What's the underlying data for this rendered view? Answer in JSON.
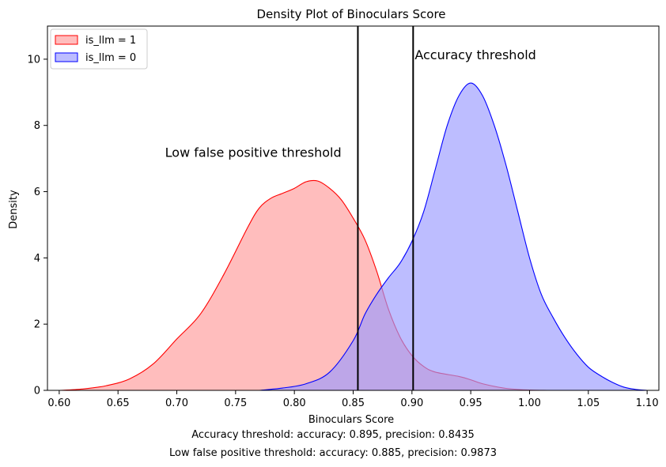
{
  "chart_data": {
    "type": "area",
    "title": "Density Plot of Binoculars Score",
    "xlabel": "Binoculars Score",
    "ylabel": "Density",
    "xlim": [
      0.59,
      1.11
    ],
    "ylim": [
      0,
      11
    ],
    "xticks": [
      0.6,
      0.65,
      0.7,
      0.75,
      0.8,
      0.85,
      0.9,
      0.95,
      1.0,
      1.05,
      1.1
    ],
    "xtick_labels": [
      "0.60",
      "0.65",
      "0.70",
      "0.75",
      "0.80",
      "0.85",
      "0.90",
      "0.95",
      "1.00",
      "1.05",
      "1.10"
    ],
    "yticks": [
      0,
      2,
      4,
      6,
      8,
      10
    ],
    "ytick_labels": [
      "0",
      "2",
      "4",
      "6",
      "8",
      "10"
    ],
    "grid": false,
    "legend_position": "top-left",
    "series": [
      {
        "name": "is_llm = 1",
        "line_color": "#ff0000",
        "fill_color": "#ff9999",
        "x": [
          0.6,
          0.62,
          0.64,
          0.66,
          0.68,
          0.7,
          0.72,
          0.74,
          0.76,
          0.77,
          0.78,
          0.79,
          0.8,
          0.81,
          0.82,
          0.83,
          0.84,
          0.85,
          0.86,
          0.87,
          0.88,
          0.89,
          0.9,
          0.91,
          0.92,
          0.94,
          0.95,
          0.96,
          0.98,
          1.0,
          1.015
        ],
        "y": [
          0.0,
          0.04,
          0.14,
          0.35,
          0.8,
          1.55,
          2.3,
          3.5,
          4.9,
          5.5,
          5.8,
          5.95,
          6.1,
          6.3,
          6.32,
          6.1,
          5.75,
          5.2,
          4.55,
          3.6,
          2.45,
          1.6,
          1.05,
          0.72,
          0.55,
          0.42,
          0.32,
          0.2,
          0.06,
          0.01,
          0.0
        ]
      },
      {
        "name": "is_llm = 0",
        "line_color": "#0000ff",
        "fill_color": "#9999ff",
        "x": [
          0.77,
          0.79,
          0.81,
          0.83,
          0.85,
          0.86,
          0.87,
          0.88,
          0.89,
          0.9,
          0.91,
          0.92,
          0.93,
          0.94,
          0.95,
          0.96,
          0.97,
          0.98,
          0.99,
          1.0,
          1.01,
          1.02,
          1.03,
          1.04,
          1.05,
          1.06,
          1.07,
          1.08,
          1.09,
          1.1
        ],
        "y": [
          0.0,
          0.07,
          0.2,
          0.55,
          1.5,
          2.3,
          2.9,
          3.4,
          3.85,
          4.5,
          5.4,
          6.7,
          8.0,
          8.9,
          9.28,
          8.9,
          8.0,
          6.8,
          5.4,
          4.0,
          2.9,
          2.2,
          1.6,
          1.1,
          0.7,
          0.45,
          0.25,
          0.1,
          0.03,
          0.0
        ]
      }
    ],
    "vlines": [
      {
        "name": "Low false positive threshold",
        "x": 0.854
      },
      {
        "name": "Accuracy threshold",
        "x": 0.901
      }
    ],
    "annotations": [
      {
        "text": "Low false positive threshold",
        "x": 0.765,
        "y": 7.05
      },
      {
        "text": "Accuracy threshold",
        "x": 0.954,
        "y": 10.0
      }
    ]
  },
  "captions": {
    "accuracy": "Accuracy threshold: accuracy: 0.895, precision: 0.8435",
    "low_fp": "Low false positive threshold: accuracy: 0.885, precision: 0.9873"
  }
}
